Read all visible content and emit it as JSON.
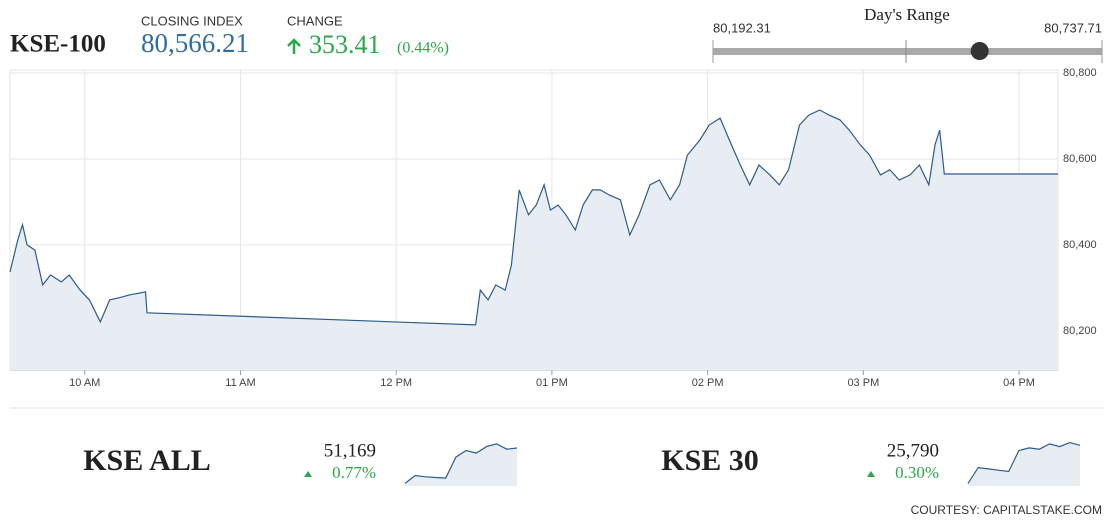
{
  "header": {
    "symbol": "KSE-100",
    "closing_label": "CLOSING INDEX",
    "closing_value": "80,566.21",
    "change_label": "CHANGE",
    "change_value": "353.41",
    "change_percent": "(0.44%)",
    "range_title": "Day's Range",
    "range_low": "80,192.31",
    "range_high": "80,737.71"
  },
  "chart_data": [
    {
      "type": "area",
      "color": "#2d5c8a",
      "fill": "#e8edf3",
      "grid": true,
      "x": [
        9.52,
        9.57,
        9.6,
        9.63,
        9.68,
        9.73,
        9.78,
        9.85,
        9.9,
        9.97,
        10.03,
        10.1,
        10.16,
        10.22,
        10.29,
        10.35,
        10.39,
        10.4,
        12.51,
        12.54,
        12.59,
        12.64,
        12.7,
        12.74,
        12.79,
        12.85,
        12.9,
        12.95,
        12.99,
        13.04,
        13.09,
        13.15,
        13.2,
        13.26,
        13.31,
        13.37,
        13.44,
        13.5,
        13.56,
        13.63,
        13.69,
        13.76,
        13.82,
        13.87,
        13.95,
        14.01,
        14.08,
        14.14,
        14.21,
        14.27,
        14.33,
        14.4,
        14.46,
        14.52,
        14.59,
        14.65,
        14.72,
        14.78,
        14.85,
        14.91,
        14.98,
        15.04,
        15.11,
        15.17,
        15.23,
        15.3,
        15.36,
        15.42,
        15.46,
        15.49,
        15.52,
        16.25
      ],
      "values": [
        80337,
        80412,
        80447,
        80400,
        80388,
        80307,
        80330,
        80314,
        80330,
        80295,
        80272,
        80221,
        80272,
        80277,
        80284,
        80288,
        80291,
        80242,
        80214,
        80295,
        80272,
        80307,
        80295,
        80353,
        80528,
        80470,
        80493,
        80540,
        80481,
        80493,
        80470,
        80435,
        80493,
        80528,
        80528,
        80516,
        80505,
        80423,
        80470,
        80540,
        80551,
        80505,
        80540,
        80609,
        80644,
        80679,
        80695,
        80644,
        80586,
        80540,
        80586,
        80563,
        80540,
        80575,
        80679,
        80702,
        80714,
        80702,
        80691,
        80667,
        80633,
        80609,
        80563,
        80575,
        80551,
        80563,
        80586,
        80540,
        80633,
        80667,
        80565,
        80565
      ],
      "xlim": [
        9.52,
        16.25
      ],
      "ylim": [
        80109,
        80807
      ],
      "xticks": [
        {
          "value": 10,
          "label": "10 AM"
        },
        {
          "value": 11,
          "label": "11 AM"
        },
        {
          "value": 12,
          "label": "12 PM"
        },
        {
          "value": 13,
          "label": "01 PM"
        },
        {
          "value": 14,
          "label": "02 PM"
        },
        {
          "value": 15,
          "label": "03 PM"
        },
        {
          "value": 16,
          "label": "04 PM"
        }
      ],
      "yticks": [
        {
          "value": 80200,
          "label": "80,200"
        },
        {
          "value": 80400,
          "label": "80,400"
        },
        {
          "value": 80600,
          "label": "80,600"
        },
        {
          "value": 80800,
          "label": "80,800"
        }
      ]
    },
    {
      "type": "sparkline",
      "title": "KSE ALL",
      "last": "51,169",
      "change": "0.77%",
      "color": "#2d5c8a",
      "fill": "#e8edf3",
      "values": [
        50900,
        50960,
        50950,
        50945,
        50940,
        51100,
        51150,
        51130,
        51180,
        51200,
        51160,
        51169
      ],
      "ylim": [
        50880,
        51230
      ]
    },
    {
      "type": "sparkline",
      "title": "KSE 30",
      "last": "25,790",
      "change": "0.30%",
      "color": "#2d5c8a",
      "fill": "#e8edf3",
      "values": [
        25500,
        25620,
        25610,
        25600,
        25590,
        25750,
        25770,
        25760,
        25800,
        25780,
        25810,
        25790
      ],
      "ylim": [
        25480,
        25830
      ]
    }
  ],
  "footer": {
    "credit": "COURTESY: CAPITALSTAKE.COM"
  }
}
